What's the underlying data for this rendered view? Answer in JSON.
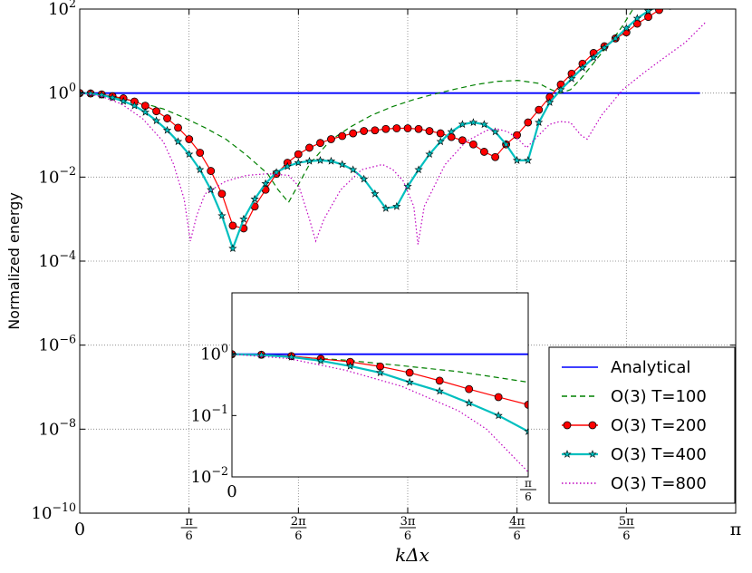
{
  "chart_data": {
    "type": "line",
    "xlabel": "kΔx",
    "ylabel": "Normalized energy",
    "yscale": "log",
    "xlim": [
      0,
      3.14159
    ],
    "ylim": [
      1e-10,
      100
    ],
    "grid": true,
    "legend_position": "bottom-right",
    "xticks": [
      {
        "value": 0,
        "label": "0"
      },
      {
        "value": 0.5236,
        "label": "π/6"
      },
      {
        "value": 1.0472,
        "label": "2π/6"
      },
      {
        "value": 1.5708,
        "label": "3π/6"
      },
      {
        "value": 2.0944,
        "label": "4π/6"
      },
      {
        "value": 2.618,
        "label": "5π/6"
      },
      {
        "value": 3.1416,
        "label": "π"
      }
    ],
    "yticks": [
      {
        "value": 1e-10,
        "base": "10",
        "exp": "−10"
      },
      {
        "value": 1e-08,
        "base": "10",
        "exp": "−8"
      },
      {
        "value": 1e-06,
        "base": "10",
        "exp": "−6"
      },
      {
        "value": 0.0001,
        "base": "10",
        "exp": "−4"
      },
      {
        "value": 0.01,
        "base": "10",
        "exp": "−2"
      },
      {
        "value": 1,
        "base": "10",
        "exp": "0"
      },
      {
        "value": 100,
        "base": "10",
        "exp": "2"
      }
    ],
    "series": [
      {
        "name": "Analytical",
        "color": "#0000ff",
        "style": "solid",
        "marker": "none",
        "points": [
          [
            0,
            1
          ],
          [
            2.97,
            1
          ]
        ]
      },
      {
        "name": "O(3) T=100",
        "color": "#008000",
        "style": "dashed",
        "marker": "none",
        "points": [
          [
            0,
            1
          ],
          [
            0.1,
            0.9
          ],
          [
            0.2,
            0.75
          ],
          [
            0.3,
            0.58
          ],
          [
            0.4,
            0.42
          ],
          [
            0.5,
            0.26
          ],
          [
            0.6,
            0.15
          ],
          [
            0.7,
            0.08
          ],
          [
            0.8,
            0.033
          ],
          [
            0.9,
            0.012
          ],
          [
            0.95,
            0.005
          ],
          [
            1.0,
            0.0025
          ],
          [
            1.05,
            0.007
          ],
          [
            1.1,
            0.02
          ],
          [
            1.2,
            0.075
          ],
          [
            1.3,
            0.16
          ],
          [
            1.4,
            0.3
          ],
          [
            1.5,
            0.48
          ],
          [
            1.6,
            0.7
          ],
          [
            1.7,
            0.95
          ],
          [
            1.8,
            1.25
          ],
          [
            1.9,
            1.6
          ],
          [
            2.0,
            1.9
          ],
          [
            2.1,
            2.0
          ],
          [
            2.2,
            1.7
          ],
          [
            2.25,
            1.25
          ],
          [
            2.3,
            1.0
          ],
          [
            2.35,
            1.2
          ],
          [
            2.4,
            2.2
          ],
          [
            2.5,
            9
          ],
          [
            2.55,
            18
          ],
          [
            2.6,
            40
          ],
          [
            2.65,
            100
          ]
        ]
      },
      {
        "name": "O(3) T=200",
        "color": "#ff0000",
        "style": "solid",
        "marker": "circle",
        "points": [
          [
            0,
            1
          ],
          [
            0.052,
            0.98
          ],
          [
            0.105,
            0.93
          ],
          [
            0.157,
            0.84
          ],
          [
            0.209,
            0.75
          ],
          [
            0.262,
            0.63
          ],
          [
            0.314,
            0.5
          ],
          [
            0.367,
            0.37
          ],
          [
            0.419,
            0.25
          ],
          [
            0.471,
            0.15
          ],
          [
            0.524,
            0.08
          ],
          [
            0.576,
            0.038
          ],
          [
            0.628,
            0.014
          ],
          [
            0.681,
            0.004
          ],
          [
            0.733,
            0.0007
          ],
          [
            0.785,
            0.0006
          ],
          [
            0.838,
            0.002
          ],
          [
            0.89,
            0.005
          ],
          [
            0.942,
            0.012
          ],
          [
            0.995,
            0.022
          ],
          [
            1.047,
            0.035
          ],
          [
            1.1,
            0.05
          ],
          [
            1.152,
            0.065
          ],
          [
            1.204,
            0.08
          ],
          [
            1.257,
            0.095
          ],
          [
            1.309,
            0.11
          ],
          [
            1.361,
            0.125
          ],
          [
            1.414,
            0.13
          ],
          [
            1.466,
            0.14
          ],
          [
            1.518,
            0.145
          ],
          [
            1.571,
            0.145
          ],
          [
            1.623,
            0.14
          ],
          [
            1.675,
            0.125
          ],
          [
            1.728,
            0.11
          ],
          [
            1.78,
            0.09
          ],
          [
            1.833,
            0.075
          ],
          [
            1.885,
            0.06
          ],
          [
            1.937,
            0.04
          ],
          [
            1.99,
            0.03
          ],
          [
            2.042,
            0.06
          ],
          [
            2.094,
            0.1
          ],
          [
            2.147,
            0.2
          ],
          [
            2.199,
            0.4
          ],
          [
            2.251,
            0.8
          ],
          [
            2.304,
            1.6
          ],
          [
            2.356,
            2.9
          ],
          [
            2.408,
            5
          ],
          [
            2.461,
            9
          ],
          [
            2.513,
            13
          ],
          [
            2.566,
            20
          ],
          [
            2.618,
            28
          ],
          [
            2.67,
            45
          ],
          [
            2.723,
            65
          ],
          [
            2.775,
            95
          ],
          [
            2.827,
            120
          ]
        ]
      },
      {
        "name": "O(3) T=400",
        "color": "#00bfbf",
        "style": "solid",
        "marker": "star",
        "points": [
          [
            0,
            1
          ],
          [
            0.052,
            0.97
          ],
          [
            0.105,
            0.9
          ],
          [
            0.157,
            0.78
          ],
          [
            0.209,
            0.64
          ],
          [
            0.262,
            0.5
          ],
          [
            0.314,
            0.35
          ],
          [
            0.367,
            0.22
          ],
          [
            0.419,
            0.13
          ],
          [
            0.471,
            0.07
          ],
          [
            0.524,
            0.035
          ],
          [
            0.576,
            0.015
          ],
          [
            0.628,
            0.005
          ],
          [
            0.681,
            0.0012
          ],
          [
            0.733,
            0.0002
          ],
          [
            0.785,
            0.001
          ],
          [
            0.838,
            0.003
          ],
          [
            0.89,
            0.007
          ],
          [
            0.942,
            0.013
          ],
          [
            0.995,
            0.018
          ],
          [
            1.047,
            0.022
          ],
          [
            1.1,
            0.024
          ],
          [
            1.152,
            0.025
          ],
          [
            1.204,
            0.024
          ],
          [
            1.257,
            0.02
          ],
          [
            1.309,
            0.015
          ],
          [
            1.361,
            0.009
          ],
          [
            1.414,
            0.004
          ],
          [
            1.466,
            0.0018
          ],
          [
            1.518,
            0.002
          ],
          [
            1.571,
            0.006
          ],
          [
            1.623,
            0.015
          ],
          [
            1.675,
            0.035
          ],
          [
            1.728,
            0.07
          ],
          [
            1.78,
            0.12
          ],
          [
            1.833,
            0.18
          ],
          [
            1.885,
            0.2
          ],
          [
            1.937,
            0.18
          ],
          [
            1.99,
            0.12
          ],
          [
            2.042,
            0.06
          ],
          [
            2.094,
            0.025
          ],
          [
            2.147,
            0.025
          ],
          [
            2.199,
            0.2
          ],
          [
            2.251,
            0.6
          ],
          [
            2.304,
            1.2
          ],
          [
            2.356,
            2.2
          ],
          [
            2.408,
            4
          ],
          [
            2.461,
            7
          ],
          [
            2.513,
            12
          ],
          [
            2.566,
            20
          ],
          [
            2.618,
            35
          ],
          [
            2.67,
            60
          ],
          [
            2.723,
            90
          ],
          [
            2.775,
            120
          ]
        ]
      },
      {
        "name": "O(3) T=800",
        "color": "#bf00bf",
        "style": "dotted",
        "marker": "none",
        "points": [
          [
            0,
            1
          ],
          [
            0.1,
            0.85
          ],
          [
            0.2,
            0.55
          ],
          [
            0.3,
            0.25
          ],
          [
            0.4,
            0.07
          ],
          [
            0.45,
            0.02
          ],
          [
            0.5,
            0.003
          ],
          [
            0.53,
            0.0003
          ],
          [
            0.56,
            0.0012
          ],
          [
            0.6,
            0.004
          ],
          [
            0.7,
            0.008
          ],
          [
            0.8,
            0.011
          ],
          [
            0.9,
            0.012
          ],
          [
            1.0,
            0.011
          ],
          [
            1.05,
            0.006
          ],
          [
            1.1,
            0.001
          ],
          [
            1.13,
            0.0003
          ],
          [
            1.17,
            0.001
          ],
          [
            1.25,
            0.005
          ],
          [
            1.35,
            0.015
          ],
          [
            1.45,
            0.02
          ],
          [
            1.5,
            0.015
          ],
          [
            1.55,
            0.008
          ],
          [
            1.6,
            0.002
          ],
          [
            1.62,
            0.00025
          ],
          [
            1.65,
            0.002
          ],
          [
            1.75,
            0.02
          ],
          [
            1.85,
            0.07
          ],
          [
            1.95,
            0.13
          ],
          [
            2.0,
            0.14
          ],
          [
            2.05,
            0.12
          ],
          [
            2.1,
            0.08
          ],
          [
            2.14,
            0.05
          ],
          [
            2.18,
            0.08
          ],
          [
            2.25,
            0.18
          ],
          [
            2.3,
            0.21
          ],
          [
            2.35,
            0.2
          ],
          [
            2.4,
            0.1
          ],
          [
            2.43,
            0.08
          ],
          [
            2.5,
            0.3
          ],
          [
            2.6,
            1.2
          ],
          [
            2.7,
            3
          ],
          [
            2.8,
            7
          ],
          [
            2.9,
            16
          ],
          [
            3.0,
            50
          ]
        ]
      }
    ],
    "inset": {
      "xlim": [
        0,
        0.5236
      ],
      "ylim": [
        0.01,
        10
      ],
      "yscale": "log",
      "xticks": [
        {
          "value": 0,
          "label": "0"
        },
        {
          "value": 0.5236,
          "label": "π/6"
        }
      ],
      "yticks": [
        {
          "value": 0.01,
          "base": "10",
          "exp": "−2"
        },
        {
          "value": 0.1,
          "base": "10",
          "exp": "−1"
        },
        {
          "value": 1,
          "base": "10",
          "exp": "0"
        }
      ],
      "series": [
        {
          "name": "Analytical",
          "points": [
            [
              0,
              1
            ],
            [
              0.5236,
              1
            ]
          ]
        },
        {
          "name": "O(3) T=100",
          "points": [
            [
              0,
              1
            ],
            [
              0.1,
              0.92
            ],
            [
              0.2,
              0.8
            ],
            [
              0.3,
              0.65
            ],
            [
              0.4,
              0.52
            ],
            [
              0.5236,
              0.35
            ]
          ]
        },
        {
          "name": "O(3) T=200",
          "points": [
            [
              0,
              1
            ],
            [
              0.052,
              0.98
            ],
            [
              0.105,
              0.93
            ],
            [
              0.157,
              0.84
            ],
            [
              0.209,
              0.75
            ],
            [
              0.262,
              0.63
            ],
            [
              0.314,
              0.5
            ],
            [
              0.367,
              0.37
            ],
            [
              0.419,
              0.27
            ],
            [
              0.471,
              0.2
            ],
            [
              0.5236,
              0.15
            ]
          ]
        },
        {
          "name": "O(3) T=400",
          "points": [
            [
              0,
              1
            ],
            [
              0.052,
              0.97
            ],
            [
              0.105,
              0.9
            ],
            [
              0.157,
              0.78
            ],
            [
              0.209,
              0.64
            ],
            [
              0.262,
              0.5
            ],
            [
              0.314,
              0.35
            ],
            [
              0.367,
              0.25
            ],
            [
              0.419,
              0.16
            ],
            [
              0.471,
              0.1
            ],
            [
              0.5236,
              0.055
            ]
          ]
        },
        {
          "name": "O(3) T=800",
          "points": [
            [
              0,
              1
            ],
            [
              0.1,
              0.85
            ],
            [
              0.2,
              0.55
            ],
            [
              0.3,
              0.3
            ],
            [
              0.4,
              0.12
            ],
            [
              0.45,
              0.06
            ],
            [
              0.5236,
              0.012
            ]
          ]
        }
      ]
    }
  }
}
